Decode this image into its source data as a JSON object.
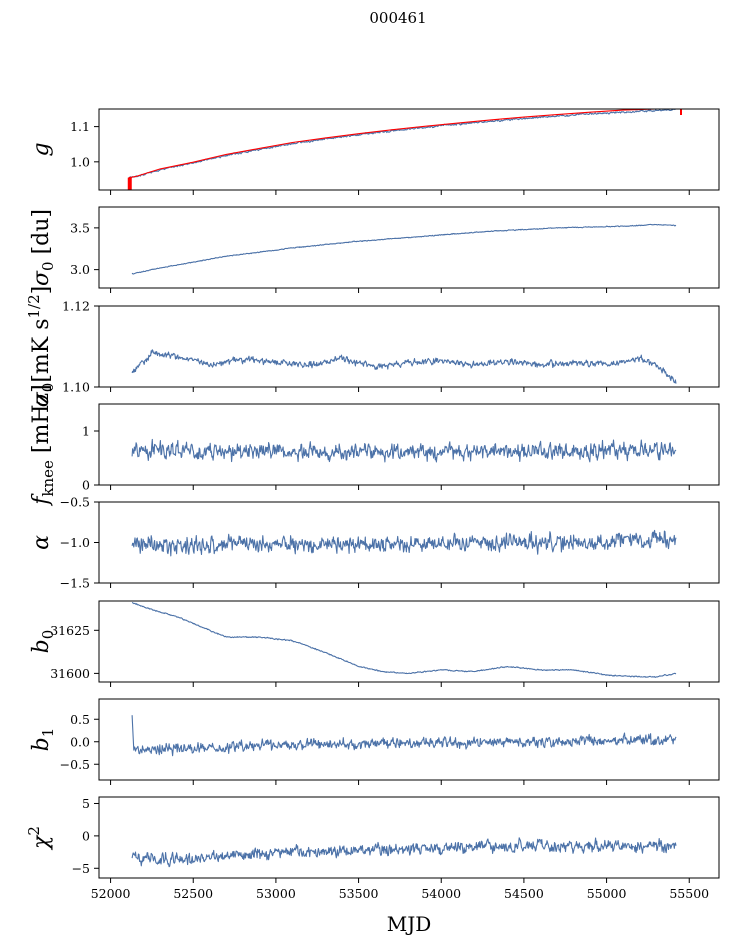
{
  "figure": {
    "suptitle": "000461",
    "xlabel": "MJD",
    "x_ticks": [
      52000,
      52500,
      53000,
      53500,
      54000,
      54500,
      55000,
      55500
    ],
    "x_tick_labels": [
      "52000",
      "52500",
      "53000",
      "53500",
      "54000",
      "54500",
      "55000",
      "55500"
    ],
    "xlim": [
      51930,
      55680
    ]
  },
  "colors": {
    "series": "#4c72a8",
    "model": "#ff0000"
  },
  "chart_data": [
    {
      "type": "line",
      "id": "g",
      "ylabel_main": "g",
      "ylabel_sub": "",
      "ylabel_tail": "",
      "ylim": [
        0.92,
        1.15
      ],
      "y_ticks": [
        1.0,
        1.1
      ],
      "y_tick_labels": [
        "1.0",
        "1.1"
      ],
      "generated_noise": 0.002,
      "series": [
        {
          "name": "",
          "role": "data",
          "x": [
            52110,
            52150,
            52300,
            52500,
            52700,
            52900,
            53100,
            53300,
            53500,
            53700,
            53900,
            54100,
            54300,
            54500,
            54700,
            54900,
            55100,
            55300,
            55420
          ],
          "y": [
            0.955,
            0.957,
            0.978,
            0.997,
            1.018,
            1.035,
            1.052,
            1.065,
            1.077,
            1.088,
            1.098,
            1.107,
            1.116,
            1.123,
            1.13,
            1.136,
            1.141,
            1.146,
            1.148
          ]
        },
        {
          "name": "",
          "role": "model",
          "x": [
            52110,
            52150,
            52300,
            52500,
            52700,
            52900,
            53100,
            53300,
            53500,
            53700,
            53900,
            54100,
            54300,
            54500,
            54700,
            54900,
            55100,
            55300,
            55420
          ],
          "y": [
            0.955,
            0.958,
            0.98,
            0.999,
            1.021,
            1.038,
            1.055,
            1.068,
            1.08,
            1.091,
            1.101,
            1.11,
            1.119,
            1.127,
            1.134,
            1.141,
            1.147,
            1.15,
            1.152
          ]
        }
      ]
    },
    {
      "type": "line",
      "id": "sigma0_du",
      "ylabel_main": "σ",
      "ylabel_sub": "0",
      "ylabel_tail": " [du]",
      "ylim": [
        2.78,
        3.75
      ],
      "y_ticks": [
        3.0,
        3.5
      ],
      "y_tick_labels": [
        "3.0",
        "3.5"
      ],
      "generated_noise": 0.004,
      "series": [
        {
          "name": "",
          "role": "data",
          "x": [
            52130,
            52300,
            52500,
            52700,
            52900,
            53100,
            53300,
            53500,
            53700,
            53900,
            54100,
            54300,
            54500,
            54700,
            54900,
            55100,
            55300,
            55420
          ],
          "y": [
            2.95,
            3.02,
            3.09,
            3.16,
            3.21,
            3.26,
            3.3,
            3.34,
            3.37,
            3.4,
            3.43,
            3.46,
            3.48,
            3.5,
            3.51,
            3.52,
            3.54,
            3.53
          ]
        }
      ]
    },
    {
      "type": "line",
      "id": "sigma0_mK",
      "ylabel_main": "σ",
      "ylabel_sub": "0",
      "ylabel_tail": "[mK s",
      "ylabel_sup": "1/2",
      "ylabel_close": "]",
      "ylim": [
        1.1,
        1.12
      ],
      "y_ticks": [
        1.1,
        1.12
      ],
      "y_tick_labels": [
        "1.10",
        "1.12"
      ],
      "generated_noise": 0.0006,
      "series": [
        {
          "name": "",
          "role": "data",
          "x": [
            52130,
            52250,
            52400,
            52600,
            52800,
            53000,
            53200,
            53400,
            53600,
            53800,
            54000,
            54200,
            54400,
            54600,
            54800,
            55000,
            55200,
            55300,
            55420
          ],
          "y": [
            1.1035,
            1.1085,
            1.1075,
            1.1055,
            1.107,
            1.106,
            1.1055,
            1.107,
            1.105,
            1.106,
            1.1065,
            1.1055,
            1.1065,
            1.1055,
            1.106,
            1.1055,
            1.107,
            1.1055,
            1.101
          ]
        }
      ]
    },
    {
      "type": "line",
      "id": "fknee",
      "ylabel_main": "f",
      "ylabel_sub": "knee",
      "ylabel_tail": " [mHz]",
      "ylim": [
        0,
        1.5
      ],
      "y_ticks": [
        0,
        1
      ],
      "y_tick_labels": [
        "0",
        "1"
      ],
      "generated_noise": 0.12,
      "series": [
        {
          "name": "",
          "role": "data",
          "x": [
            52130,
            52500,
            53000,
            53500,
            54000,
            54500,
            55000,
            55420
          ],
          "y": [
            0.65,
            0.62,
            0.62,
            0.6,
            0.62,
            0.63,
            0.64,
            0.65
          ]
        }
      ]
    },
    {
      "type": "line",
      "id": "alpha",
      "ylabel_main": "α",
      "ylabel_sub": "",
      "ylabel_tail": "",
      "ylim": [
        -1.5,
        -0.5
      ],
      "y_ticks": [
        -1.5,
        -1.0,
        -0.5
      ],
      "y_tick_labels": [
        "−1.5",
        "−1.0",
        "−0.5"
      ],
      "generated_noise": 0.08,
      "series": [
        {
          "name": "",
          "role": "data",
          "x": [
            52130,
            52500,
            53000,
            53500,
            54000,
            54500,
            55000,
            55420
          ],
          "y": [
            -1.02,
            -1.03,
            -1.01,
            -1.02,
            -1.0,
            -0.99,
            -0.98,
            -0.97
          ]
        }
      ]
    },
    {
      "type": "line",
      "id": "b0",
      "ylabel_main": "b",
      "ylabel_sub": "0",
      "ylabel_tail": "",
      "ylim": [
        31595,
        31642
      ],
      "y_ticks": [
        31600,
        31625
      ],
      "y_tick_labels": [
        "31600",
        "31625"
      ],
      "generated_noise": 0.25,
      "series": [
        {
          "name": "",
          "role": "data",
          "x": [
            52130,
            52250,
            52400,
            52550,
            52700,
            52900,
            53100,
            53300,
            53500,
            53650,
            53800,
            54000,
            54200,
            54400,
            54600,
            54800,
            55000,
            55200,
            55300,
            55420
          ],
          "y": [
            31641,
            31637,
            31633,
            31627,
            31621,
            31621,
            31619,
            31612,
            31604,
            31601,
            31600,
            31602,
            31601,
            31604,
            31602,
            31602,
            31599,
            31598,
            31598,
            31600
          ]
        }
      ]
    },
    {
      "type": "line",
      "id": "b1",
      "ylabel_main": "b",
      "ylabel_sub": "1",
      "ylabel_tail": "",
      "ylim": [
        -0.85,
        0.95
      ],
      "y_ticks": [
        -0.5,
        0.0,
        0.5
      ],
      "y_tick_labels": [
        "−0.5",
        "0.0",
        "0.5"
      ],
      "generated_noise": 0.09,
      "series": [
        {
          "name": "",
          "role": "data",
          "x": [
            52130,
            52140,
            52200,
            52400,
            52600,
            53000,
            53500,
            54000,
            54500,
            55000,
            55200,
            55420
          ],
          "y": [
            0.58,
            -0.15,
            -0.2,
            -0.15,
            -0.12,
            -0.08,
            -0.05,
            -0.02,
            0.0,
            0.02,
            0.05,
            0.03
          ]
        }
      ]
    },
    {
      "type": "line",
      "id": "chi2",
      "ylabel_main": "χ",
      "ylabel_sub": "",
      "ylabel_tail": "",
      "ylabel_sup": "2",
      "ylim": [
        -6.5,
        6
      ],
      "y_ticks": [
        -5,
        0,
        5
      ],
      "y_tick_labels": [
        "−5",
        "0",
        "5"
      ],
      "generated_noise": 0.7,
      "series": [
        {
          "name": "",
          "role": "data",
          "x": [
            52130,
            52300,
            52500,
            52700,
            53000,
            53500,
            54000,
            54500,
            55000,
            55420
          ],
          "y": [
            -3.2,
            -3.8,
            -3.6,
            -3.0,
            -2.6,
            -2.2,
            -1.9,
            -1.7,
            -1.6,
            -1.5
          ]
        }
      ]
    }
  ]
}
